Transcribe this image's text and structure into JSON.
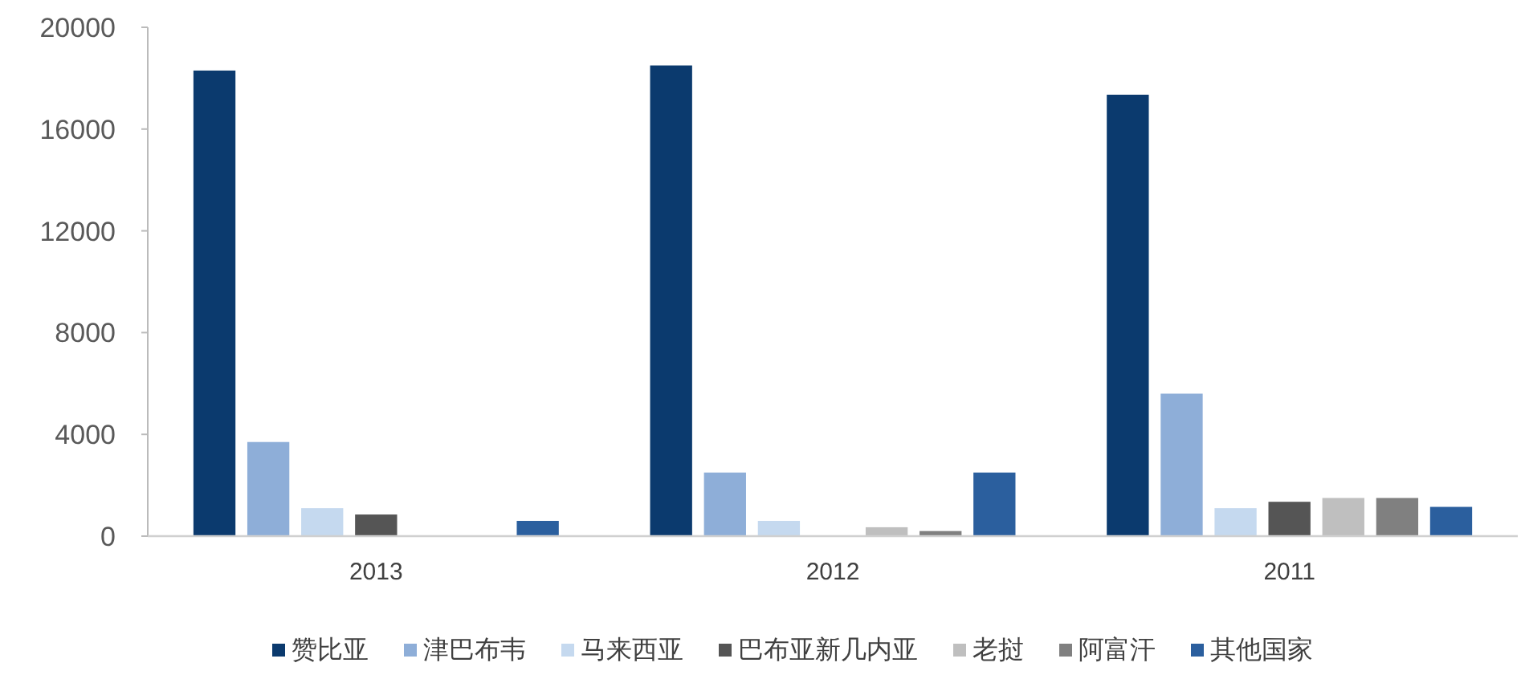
{
  "chart_data": {
    "type": "bar",
    "categories": [
      "2013",
      "2012",
      "2011"
    ],
    "series": [
      {
        "name": "赞比亚",
        "color": "#0b3a6e",
        "values": [
          18300,
          18500,
          17350
        ]
      },
      {
        "name": "津巴布韦",
        "color": "#8eaed8",
        "values": [
          3700,
          2500,
          5600
        ]
      },
      {
        "name": "马来西亚",
        "color": "#c5d9ef",
        "values": [
          1100,
          600,
          1100
        ]
      },
      {
        "name": "巴布亚新几内亚",
        "color": "#555555",
        "values": [
          850,
          null,
          1350
        ]
      },
      {
        "name": "老挝",
        "color": "#bfbfbf",
        "values": [
          null,
          350,
          1500
        ]
      },
      {
        "name": "阿富汗",
        "color": "#808080",
        "values": [
          null,
          200,
          1500
        ]
      },
      {
        "name": "其他国家",
        "color": "#2b5f9e",
        "values": [
          600,
          2500,
          1150
        ]
      }
    ],
    "ylim": [
      0,
      20000
    ],
    "yticks": [
      0,
      4000,
      8000,
      12000,
      16000,
      20000
    ],
    "grid": false,
    "legend": "bottom"
  }
}
